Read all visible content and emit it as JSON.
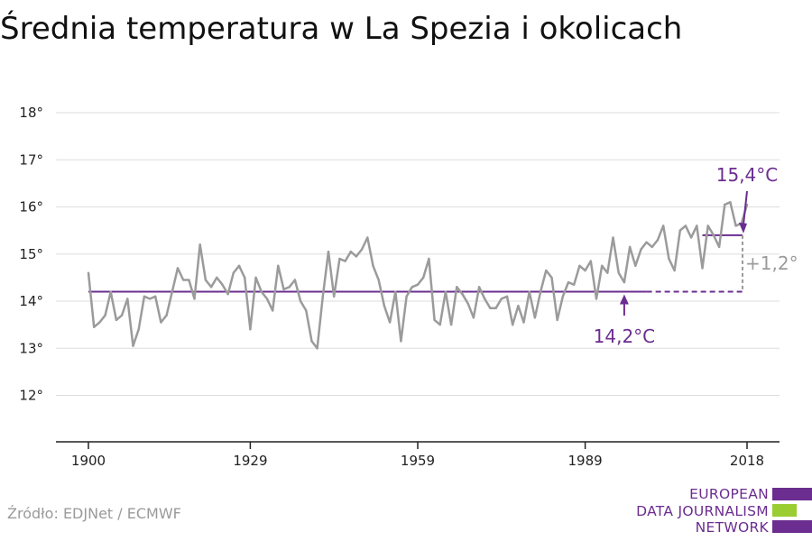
{
  "title": "Średnia temperatura w La Spezia i okolicach",
  "source": "Źródło: EDJNet / ECMWF",
  "logo": {
    "lines": [
      "EUROPEAN",
      "DATA JOURNALISM",
      "NETWORK"
    ],
    "bars": [
      {
        "color": "#6b2d8f",
        "fraction": 1.0
      },
      {
        "color": "#9acd32",
        "fraction": 0.62
      },
      {
        "color": "#6b2d8f",
        "fraction": 1.0
      }
    ]
  },
  "colors": {
    "series": "#9b9b9b",
    "reference": "#6b2d8f",
    "grid": "#dddddd",
    "axis": "#222222",
    "diff": "#9b9b9b"
  },
  "chart_data": {
    "type": "line",
    "title": "Średnia temperatura w La Spezia i okolicach",
    "xlabel": "",
    "ylabel": "",
    "xlim": [
      1900,
      2018
    ],
    "ylim": [
      11,
      18.2
    ],
    "y_ticks": [
      12,
      13,
      14,
      15,
      16,
      17,
      18
    ],
    "y_tick_labels": [
      "12°",
      "13°",
      "14°",
      "15°",
      "16°",
      "17°",
      "18°"
    ],
    "x_ticks": [
      1900,
      1929,
      1959,
      1989,
      2018
    ],
    "x_tick_labels": [
      "1900",
      "1929",
      "1959",
      "1989",
      "2018"
    ],
    "grid": true,
    "series": [
      {
        "x": [
          1900,
          1901,
          1902,
          1903,
          1904,
          1905,
          1906,
          1907,
          1908,
          1909,
          1910,
          1911,
          1912,
          1913,
          1914,
          1915,
          1916,
          1917,
          1918,
          1919,
          1920,
          1921,
          1922,
          1923,
          1924,
          1925,
          1926,
          1927,
          1928,
          1929,
          1930,
          1931,
          1932,
          1933,
          1934,
          1935,
          1936,
          1937,
          1938,
          1939,
          1940,
          1941,
          1942,
          1943,
          1944,
          1945,
          1946,
          1947,
          1948,
          1949,
          1950,
          1951,
          1952,
          1953,
          1954,
          1955,
          1956,
          1957,
          1958,
          1959,
          1960,
          1961,
          1962,
          1963,
          1964,
          1965,
          1966,
          1967,
          1968,
          1969,
          1970,
          1971,
          1972,
          1973,
          1974,
          1975,
          1976,
          1977,
          1978,
          1979,
          1980,
          1981,
          1982,
          1983,
          1984,
          1985,
          1986,
          1987,
          1988,
          1989,
          1990,
          1991,
          1992,
          1993,
          1994,
          1995,
          1996,
          1997,
          1998,
          1999,
          2000,
          2001,
          2002,
          2003,
          2004,
          2005,
          2006,
          2007,
          2008,
          2009,
          2010,
          2011,
          2012,
          2013,
          2014,
          2015,
          2016,
          2017,
          2018
        ],
        "values": [
          14.6,
          13.45,
          13.55,
          13.7,
          14.2,
          13.6,
          13.7,
          14.05,
          13.05,
          13.4,
          14.1,
          14.05,
          14.1,
          13.55,
          13.7,
          14.2,
          14.7,
          14.45,
          14.45,
          14.05,
          15.2,
          14.45,
          14.3,
          14.5,
          14.35,
          14.15,
          14.6,
          14.75,
          14.5,
          13.4,
          14.5,
          14.2,
          14.05,
          13.8,
          14.75,
          14.25,
          14.3,
          14.45,
          14.0,
          13.8,
          13.15,
          13.0,
          14.1,
          15.05,
          14.1,
          14.9,
          14.85,
          15.05,
          14.95,
          15.1,
          15.35,
          14.75,
          14.45,
          13.9,
          13.55,
          14.2,
          13.15,
          14.1,
          14.3,
          14.35,
          14.5,
          14.9,
          13.6,
          13.5,
          14.2,
          13.5,
          14.3,
          14.15,
          13.95,
          13.65,
          14.3,
          14.05,
          13.85,
          13.85,
          14.05,
          14.1,
          13.5,
          13.9,
          13.55,
          14.2,
          13.65,
          14.2,
          14.65,
          14.5,
          13.6,
          14.1,
          14.4,
          14.35,
          14.75,
          14.65,
          14.85,
          14.05,
          14.75,
          14.6,
          15.35,
          14.6,
          14.4,
          15.15,
          14.75,
          15.1,
          15.25,
          15.15,
          15.3,
          15.6,
          14.9,
          14.65,
          15.5,
          15.6,
          15.35,
          15.6,
          14.7,
          15.6,
          15.4,
          15.15,
          16.05,
          16.1,
          15.6,
          15.65,
          16.05
        ]
      }
    ],
    "annotations": {
      "baseline": {
        "label": "14,2°C",
        "value": 14.2
      },
      "recent": {
        "label": "15,4°C",
        "value": 15.4
      },
      "difference": {
        "label": "+1,2°"
      }
    }
  }
}
